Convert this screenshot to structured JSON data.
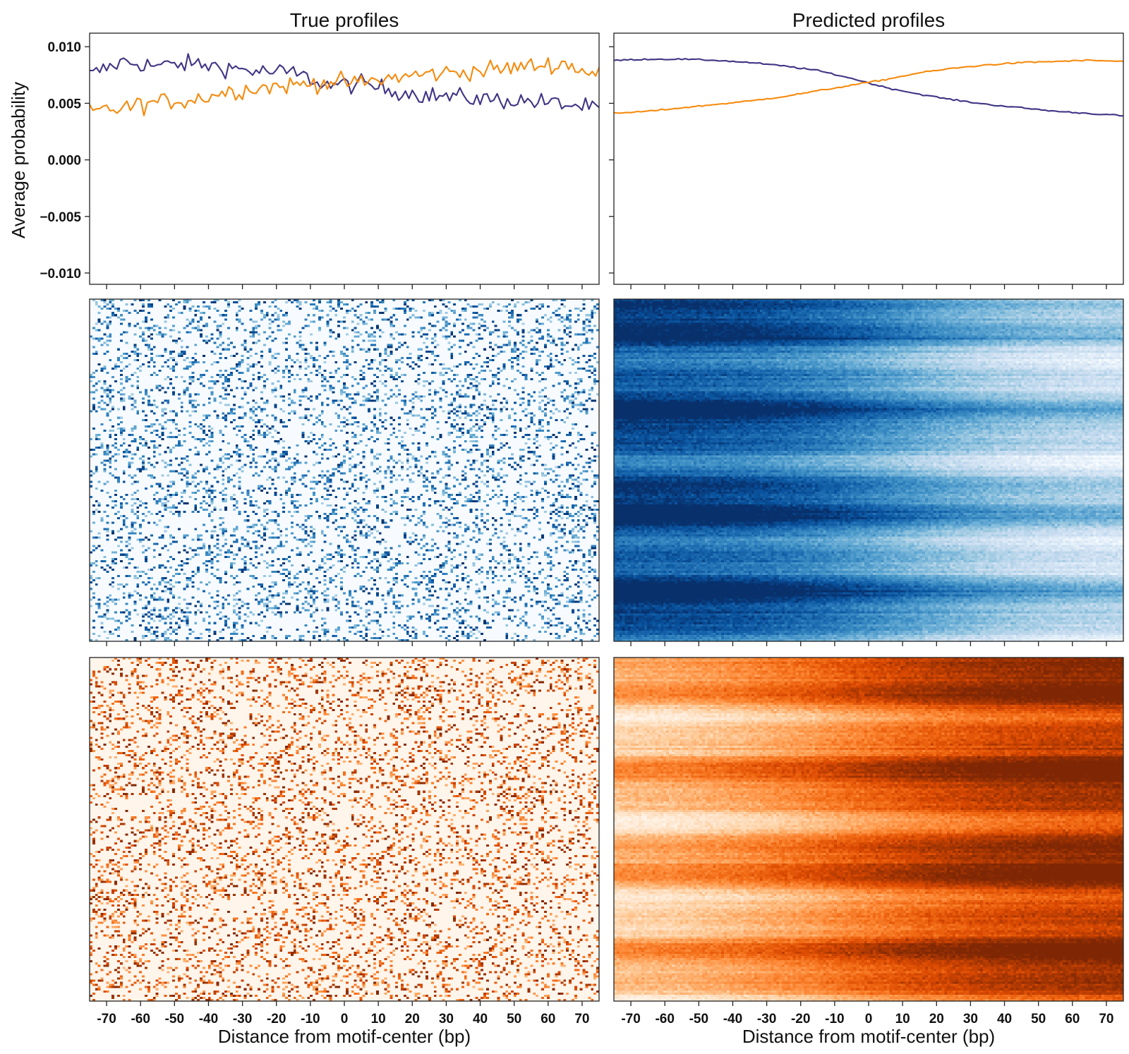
{
  "figure": {
    "titles": {
      "left": "True profiles",
      "right": "Predicted profiles"
    },
    "ylabel": "Average probability",
    "xlabel": "Distance from motif-center (bp)",
    "colors": {
      "strand_a": "#3f3585",
      "strand_b": "#f58b0f",
      "blues_dark": "#08306b",
      "blues_light": "#f7fbff",
      "oranges_dark": "#7f2704",
      "oranges_light": "#fff5eb"
    }
  },
  "chart_data": [
    {
      "panel": "true-profiles-line",
      "type": "line",
      "title": "True profiles",
      "ylabel": "Average probability",
      "ylim": [
        -0.011,
        0.0112
      ],
      "yticks": [
        "0.010",
        "0.005",
        "0.000",
        "−0.005",
        "−0.010"
      ],
      "ytick_values": [
        0.01,
        0.005,
        0.0,
        -0.005,
        -0.01
      ],
      "xlim": [
        -75,
        75
      ],
      "xticks": [
        -70,
        -60,
        -50,
        -40,
        -30,
        -20,
        -10,
        0,
        10,
        20,
        30,
        40,
        50,
        60,
        70
      ],
      "x": [
        -75,
        -65,
        -55,
        -45,
        -35,
        -25,
        -15,
        -5,
        5,
        15,
        25,
        35,
        45,
        55,
        65,
        75
      ],
      "series": [
        {
          "color": "#3f3585",
          "values": [
            0.0075,
            0.0087,
            0.0083,
            0.0085,
            0.0082,
            0.0078,
            0.0077,
            0.0066,
            0.0067,
            0.0061,
            0.0057,
            0.0055,
            0.0053,
            0.0052,
            0.0049,
            0.0045
          ]
        },
        {
          "color": "#f58b0f",
          "values": [
            0.0042,
            0.0046,
            0.0051,
            0.0053,
            0.006,
            0.0064,
            0.0066,
            0.0069,
            0.0068,
            0.0073,
            0.0076,
            0.0078,
            0.008,
            0.0083,
            0.0085,
            0.0074
          ]
        }
      ]
    },
    {
      "panel": "predicted-profiles-line",
      "type": "line",
      "title": "Predicted profiles",
      "ylim": [
        -0.011,
        0.0112
      ],
      "xlim": [
        -75,
        75
      ],
      "xticks": [
        -70,
        -60,
        -50,
        -40,
        -30,
        -20,
        -10,
        0,
        10,
        20,
        30,
        40,
        50,
        60,
        70
      ],
      "x": [
        -75,
        -65,
        -55,
        -45,
        -35,
        -25,
        -15,
        -5,
        5,
        15,
        25,
        35,
        45,
        55,
        65,
        75
      ],
      "series": [
        {
          "color": "#3f3585",
          "values": [
            0.0088,
            0.0089,
            0.0089,
            0.0088,
            0.0086,
            0.0083,
            0.0079,
            0.0072,
            0.0064,
            0.0058,
            0.0053,
            0.0049,
            0.0046,
            0.0043,
            0.0041,
            0.0039
          ]
        },
        {
          "color": "#f58b0f",
          "values": [
            0.0041,
            0.0043,
            0.0046,
            0.0049,
            0.0052,
            0.0056,
            0.0061,
            0.0066,
            0.0071,
            0.0077,
            0.0081,
            0.0084,
            0.0086,
            0.0087,
            0.0088,
            0.0087
          ]
        }
      ]
    },
    {
      "panel": "true-blue-heatmap",
      "type": "heatmap",
      "colormap": "Blues",
      "xlim": [
        -75,
        75
      ],
      "pattern": "sparse",
      "row_profile": "flat",
      "trend": [
        0.5,
        0.5,
        0.5,
        0.5,
        0.5,
        0.5,
        0.5,
        0.5,
        0.5
      ]
    },
    {
      "panel": "predicted-blue-heatmap",
      "type": "heatmap",
      "colormap": "Blues",
      "xlim": [
        -75,
        75
      ],
      "pattern": "dense",
      "row_profile": "banded",
      "trend": [
        0.92,
        0.9,
        0.86,
        0.78,
        0.66,
        0.52,
        0.4,
        0.32,
        0.28
      ]
    },
    {
      "panel": "true-orange-heatmap",
      "type": "heatmap",
      "colormap": "Oranges",
      "xlim": [
        -75,
        75
      ],
      "xlabel": "Distance from motif-center (bp)",
      "xticks": [
        -70,
        -60,
        -50,
        -40,
        -30,
        -20,
        -10,
        0,
        10,
        20,
        30,
        40,
        50,
        60,
        70
      ],
      "pattern": "sparse",
      "row_profile": "flat",
      "trend": [
        0.5,
        0.5,
        0.5,
        0.5,
        0.5,
        0.5,
        0.5,
        0.5,
        0.5
      ]
    },
    {
      "panel": "predicted-orange-heatmap",
      "type": "heatmap",
      "colormap": "Oranges",
      "xlim": [
        -75,
        75
      ],
      "xlabel": "Distance from motif-center (bp)",
      "xticks": [
        -70,
        -60,
        -50,
        -40,
        -30,
        -20,
        -10,
        0,
        10,
        20,
        30,
        40,
        50,
        60,
        70
      ],
      "pattern": "dense",
      "row_profile": "banded",
      "trend": [
        0.3,
        0.34,
        0.42,
        0.52,
        0.64,
        0.74,
        0.82,
        0.87,
        0.9
      ]
    }
  ]
}
